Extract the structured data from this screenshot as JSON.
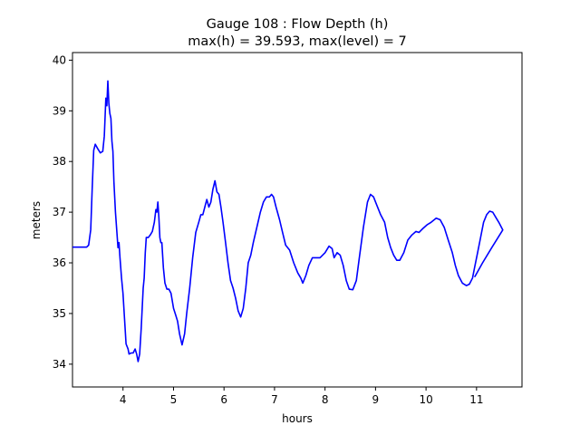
{
  "chart_data": {
    "type": "line",
    "title": "Gauge 108 : Flow Depth (h)",
    "subtitle": "max(h) =  39.593,    max(level) = 7",
    "xlabel": "hours",
    "ylabel": "meters",
    "xlim": [
      3.0,
      11.9
    ],
    "ylim": [
      33.55,
      40.15
    ],
    "xticks": [
      4,
      5,
      6,
      7,
      8,
      9,
      10,
      11
    ],
    "yticks": [
      34,
      35,
      36,
      37,
      38,
      39,
      40
    ],
    "grid": false,
    "series": [
      {
        "color": "#0000ff",
        "points": [
          [
            3.0,
            36.31
          ],
          [
            3.2,
            36.31
          ],
          [
            3.28,
            36.31
          ],
          [
            3.32,
            36.35
          ],
          [
            3.36,
            36.65
          ],
          [
            3.39,
            37.45
          ],
          [
            3.42,
            38.22
          ],
          [
            3.45,
            38.34
          ],
          [
            3.5,
            38.25
          ],
          [
            3.55,
            38.17
          ],
          [
            3.6,
            38.2
          ],
          [
            3.63,
            38.5
          ],
          [
            3.66,
            39.25
          ],
          [
            3.68,
            39.1
          ],
          [
            3.7,
            39.59
          ],
          [
            3.72,
            39.15
          ],
          [
            3.74,
            38.95
          ],
          [
            3.76,
            38.85
          ],
          [
            3.78,
            38.4
          ],
          [
            3.8,
            38.2
          ],
          [
            3.82,
            37.6
          ],
          [
            3.85,
            37.0
          ],
          [
            3.88,
            36.6
          ],
          [
            3.9,
            36.3
          ],
          [
            3.92,
            36.4
          ],
          [
            3.94,
            36.1
          ],
          [
            3.97,
            35.7
          ],
          [
            4.0,
            35.4
          ],
          [
            4.03,
            34.9
          ],
          [
            4.06,
            34.4
          ],
          [
            4.1,
            34.3
          ],
          [
            4.12,
            34.2
          ],
          [
            4.16,
            34.22
          ],
          [
            4.2,
            34.22
          ],
          [
            4.24,
            34.3
          ],
          [
            4.27,
            34.2
          ],
          [
            4.3,
            34.05
          ],
          [
            4.33,
            34.2
          ],
          [
            4.36,
            34.7
          ],
          [
            4.4,
            35.5
          ],
          [
            4.42,
            35.7
          ],
          [
            4.44,
            36.2
          ],
          [
            4.46,
            36.5
          ],
          [
            4.5,
            36.5
          ],
          [
            4.54,
            36.55
          ],
          [
            4.58,
            36.62
          ],
          [
            4.62,
            36.8
          ],
          [
            4.65,
            37.05
          ],
          [
            4.67,
            37.0
          ],
          [
            4.69,
            37.2
          ],
          [
            4.71,
            36.9
          ],
          [
            4.73,
            36.5
          ],
          [
            4.75,
            36.4
          ],
          [
            4.77,
            36.4
          ],
          [
            4.8,
            35.9
          ],
          [
            4.83,
            35.6
          ],
          [
            4.87,
            35.48
          ],
          [
            4.91,
            35.48
          ],
          [
            4.95,
            35.4
          ],
          [
            5.0,
            35.1
          ],
          [
            5.04,
            34.98
          ],
          [
            5.08,
            34.85
          ],
          [
            5.12,
            34.6
          ],
          [
            5.17,
            34.38
          ],
          [
            5.22,
            34.6
          ],
          [
            5.26,
            35.0
          ],
          [
            5.32,
            35.5
          ],
          [
            5.38,
            36.1
          ],
          [
            5.44,
            36.6
          ],
          [
            5.5,
            36.8
          ],
          [
            5.54,
            36.95
          ],
          [
            5.58,
            36.95
          ],
          [
            5.62,
            37.1
          ],
          [
            5.66,
            37.25
          ],
          [
            5.7,
            37.1
          ],
          [
            5.74,
            37.2
          ],
          [
            5.78,
            37.45
          ],
          [
            5.82,
            37.62
          ],
          [
            5.86,
            37.4
          ],
          [
            5.9,
            37.35
          ],
          [
            5.94,
            37.1
          ],
          [
            5.98,
            36.8
          ],
          [
            6.03,
            36.4
          ],
          [
            6.08,
            36.0
          ],
          [
            6.13,
            35.65
          ],
          [
            6.18,
            35.5
          ],
          [
            6.23,
            35.3
          ],
          [
            6.28,
            35.05
          ],
          [
            6.33,
            34.93
          ],
          [
            6.38,
            35.1
          ],
          [
            6.43,
            35.5
          ],
          [
            6.48,
            36.0
          ],
          [
            6.53,
            36.15
          ],
          [
            6.58,
            36.4
          ],
          [
            6.65,
            36.7
          ],
          [
            6.72,
            37.0
          ],
          [
            6.78,
            37.2
          ],
          [
            6.84,
            37.3
          ],
          [
            6.9,
            37.3
          ],
          [
            6.94,
            37.35
          ],
          [
            6.98,
            37.3
          ],
          [
            7.03,
            37.1
          ],
          [
            7.1,
            36.85
          ],
          [
            7.16,
            36.6
          ],
          [
            7.22,
            36.35
          ],
          [
            7.3,
            36.25
          ],
          [
            7.38,
            36.0
          ],
          [
            7.46,
            35.8
          ],
          [
            7.52,
            35.7
          ],
          [
            7.56,
            35.6
          ],
          [
            7.62,
            35.75
          ],
          [
            7.68,
            35.95
          ],
          [
            7.75,
            36.1
          ],
          [
            7.82,
            36.1
          ],
          [
            7.9,
            36.1
          ],
          [
            8.0,
            36.2
          ],
          [
            8.08,
            36.33
          ],
          [
            8.14,
            36.28
          ],
          [
            8.18,
            36.1
          ],
          [
            8.24,
            36.2
          ],
          [
            8.3,
            36.15
          ],
          [
            8.36,
            35.95
          ],
          [
            8.42,
            35.65
          ],
          [
            8.48,
            35.48
          ],
          [
            8.55,
            35.47
          ],
          [
            8.62,
            35.65
          ],
          [
            8.68,
            36.1
          ],
          [
            8.76,
            36.7
          ],
          [
            8.84,
            37.2
          ],
          [
            8.9,
            37.35
          ],
          [
            8.96,
            37.3
          ],
          [
            9.02,
            37.15
          ],
          [
            9.1,
            36.95
          ],
          [
            9.18,
            36.8
          ],
          [
            9.24,
            36.5
          ],
          [
            9.3,
            36.3
          ],
          [
            9.36,
            36.15
          ],
          [
            9.42,
            36.05
          ],
          [
            9.48,
            36.05
          ],
          [
            9.56,
            36.2
          ],
          [
            9.64,
            36.45
          ],
          [
            9.72,
            36.55
          ],
          [
            9.8,
            36.62
          ],
          [
            9.86,
            36.6
          ],
          [
            9.94,
            36.68
          ],
          [
            10.02,
            36.75
          ],
          [
            10.1,
            36.8
          ],
          [
            10.2,
            36.88
          ],
          [
            10.28,
            36.85
          ],
          [
            10.36,
            36.7
          ],
          [
            10.44,
            36.45
          ],
          [
            10.52,
            36.2
          ],
          [
            10.58,
            35.95
          ],
          [
            10.64,
            35.75
          ],
          [
            10.72,
            35.6
          ],
          [
            10.8,
            35.55
          ],
          [
            10.86,
            35.58
          ],
          [
            10.92,
            35.7
          ],
          [
            10.96,
            35.9
          ],
          [
            11.02,
            36.2
          ],
          [
            11.08,
            36.5
          ],
          [
            11.14,
            36.8
          ],
          [
            11.2,
            36.95
          ],
          [
            11.26,
            37.02
          ],
          [
            11.32,
            37.0
          ],
          [
            11.38,
            36.9
          ],
          [
            11.44,
            36.8
          ],
          [
            11.52,
            36.65
          ],
          [
            11.3,
            36.3
          ],
          [
            11.12,
            36.0
          ],
          [
            10.98,
            35.75
          ],
          [
            10.96,
            35.72
          ]
        ]
      }
    ]
  }
}
